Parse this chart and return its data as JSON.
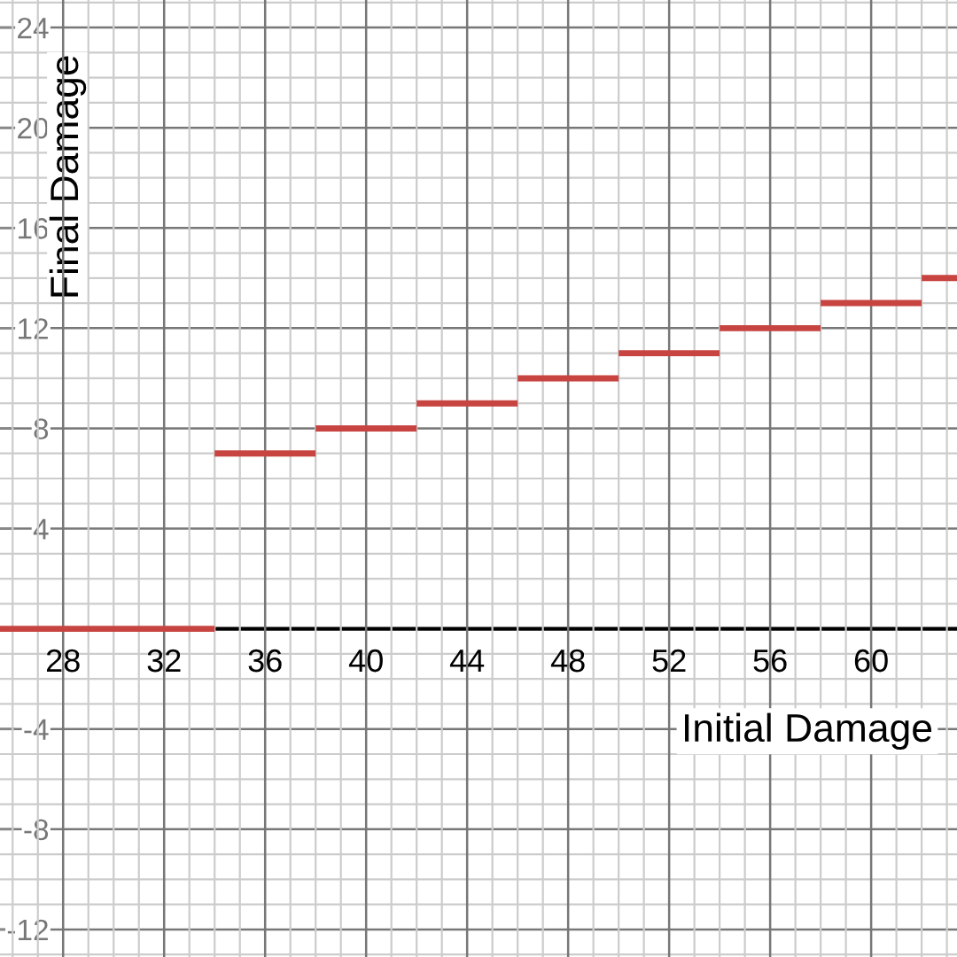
{
  "chart_data": {
    "type": "line",
    "xlabel": "Initial Damage",
    "ylabel": "Final Damage",
    "xlim": [
      25.5,
      63.4
    ],
    "ylim": [
      -13.1,
      25.1
    ],
    "xticks": [
      28,
      32,
      36,
      40,
      44,
      48,
      52,
      56,
      60
    ],
    "yticks": [
      -12,
      -8,
      -4,
      4,
      8,
      12,
      16,
      20,
      24
    ],
    "grid": true,
    "marker": "none",
    "line_style": "solid",
    "series": [
      {
        "color": "#c74440",
        "x": [
          25.5,
          34
        ],
        "values": [
          0,
          0
        ]
      },
      {
        "color": "#c74440",
        "x": [
          34,
          38
        ],
        "values": [
          7,
          7
        ]
      },
      {
        "color": "#c74440",
        "x": [
          38,
          42
        ],
        "values": [
          8,
          8
        ]
      },
      {
        "color": "#c74440",
        "x": [
          42,
          46
        ],
        "values": [
          9,
          9
        ]
      },
      {
        "color": "#c74440",
        "x": [
          46,
          50
        ],
        "values": [
          10,
          10
        ]
      },
      {
        "color": "#c74440",
        "x": [
          50,
          54
        ],
        "values": [
          11,
          11
        ]
      },
      {
        "color": "#c74440",
        "x": [
          54,
          58
        ],
        "values": [
          12,
          12
        ]
      },
      {
        "color": "#c74440",
        "x": [
          58,
          62
        ],
        "values": [
          13,
          13
        ]
      },
      {
        "color": "#c74440",
        "x": [
          62,
          63.4
        ],
        "values": [
          14,
          14
        ]
      }
    ]
  }
}
